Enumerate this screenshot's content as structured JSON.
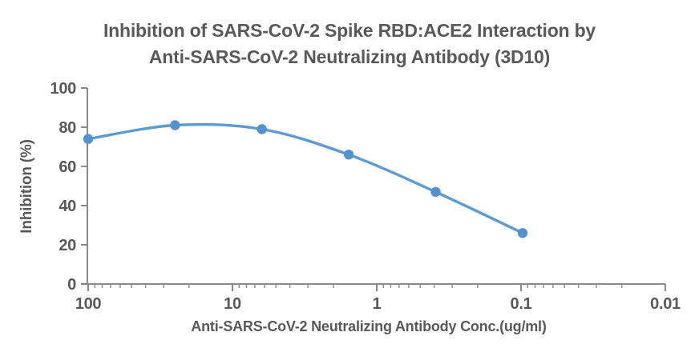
{
  "chart_data": {
    "type": "line",
    "title_line1": "Inhibition of SARS-CoV-2 Spike RBD:ACE2 Interaction by",
    "title_line2": "Anti-SARS-CoV-2 Neutralizing Antibody (3D10)",
    "xlabel": "Anti-SARS-CoV-2 Neutralizing Antibody Conc.(ug/ml)",
    "ylabel": "Inhibition (%)",
    "x_scale": "log10-reversed",
    "xlim": [
      100,
      0.01
    ],
    "ylim": [
      0,
      100
    ],
    "x_ticks": [
      100,
      10,
      1,
      0.1,
      0.01
    ],
    "y_ticks": [
      0,
      20,
      40,
      60,
      80,
      100
    ],
    "grid": false,
    "legend": "none",
    "series": [
      {
        "name": "Anti-SARS-CoV-2 Neutralizing Antibody (3D10)",
        "x": [
          100,
          25,
          6.25,
          1.5625,
          0.390625,
          0.09765625
        ],
        "y": [
          74,
          81,
          79,
          66,
          47,
          26
        ],
        "marker": "circle",
        "smooth": true
      }
    ],
    "colors": {
      "line": "#5B9BD5",
      "marker": "#5491CF",
      "text": "#595959",
      "axis": "#8A8A8A"
    }
  }
}
